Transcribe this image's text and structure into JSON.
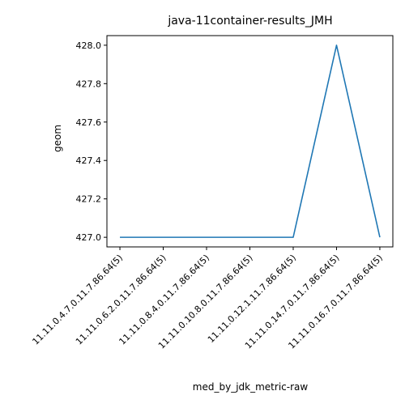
{
  "chart_data": {
    "type": "line",
    "title": "java-11container-results_JMH",
    "xlabel": "med_by_jdk_metric-raw",
    "ylabel": "geom",
    "categories": [
      "11.11.0.4.7.0.11.7.86.64(5)",
      "11.11.0.6.2.0.11.7.86.64(5)",
      "11.11.0.8.4.0.11.7.86.64(5)",
      "11.11.0.10.8.0.11.7.86.64(5)",
      "11.11.0.12.1.11.7.86.64(5)",
      "11.11.0.14.7.0.11.7.86.64(5)",
      "11.11.0.16.7.0.11.7.86.64(5)"
    ],
    "series": [
      {
        "values": [
          427.0,
          427.0,
          427.0,
          427.0,
          427.0,
          428.0,
          427.0
        ],
        "color": "#1f77b4"
      }
    ],
    "ylim": [
      426.95,
      428.05
    ],
    "yticks": [
      "427.0",
      "427.2",
      "427.4",
      "427.6",
      "427.8",
      "428.0"
    ],
    "grid": false,
    "legend": "none"
  }
}
